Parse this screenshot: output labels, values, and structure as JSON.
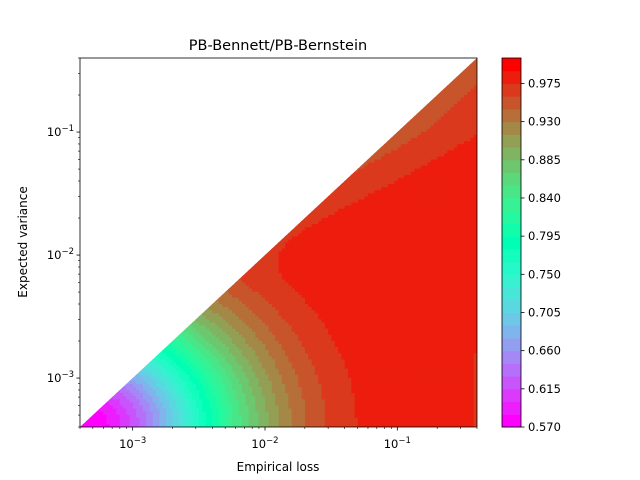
{
  "chart_data": {
    "type": "heatmap",
    "subtype": "filled-contour",
    "title": "PB-Bennett/PB-Bernstein",
    "xlabel": "Empirical loss",
    "ylabel": "Expected variance",
    "xscale": "log",
    "yscale": "log",
    "xlim": [
      0.0004,
      0.4
    ],
    "ylim": [
      0.0004,
      0.4
    ],
    "x_ticks": [
      {
        "value": 0.001,
        "base": "10",
        "exp": "−3"
      },
      {
        "value": 0.01,
        "base": "10",
        "exp": "−2"
      },
      {
        "value": 0.1,
        "base": "10",
        "exp": "−1"
      }
    ],
    "y_ticks": [
      {
        "value": 0.001,
        "base": "10",
        "exp": "−3"
      },
      {
        "value": 0.01,
        "base": "10",
        "exp": "−2"
      },
      {
        "value": 0.1,
        "base": "10",
        "exp": "−1"
      }
    ],
    "domain": "region where expected variance <= empirical loss (lower-right triangle); upper-left triangle blank",
    "colormap": "rainbow",
    "levels": [
      0.57,
      0.585,
      0.6,
      0.615,
      0.63,
      0.645,
      0.66,
      0.675,
      0.69,
      0.705,
      0.72,
      0.735,
      0.75,
      0.765,
      0.78,
      0.795,
      0.81,
      0.825,
      0.84,
      0.855,
      0.87,
      0.885,
      0.9,
      0.915,
      0.93,
      0.945,
      0.96,
      0.975,
      0.99,
      1.005
    ],
    "colorbar": {
      "ticks": [
        "0.570",
        "0.615",
        "0.660",
        "0.705",
        "0.750",
        "0.795",
        "0.840",
        "0.885",
        "0.930",
        "0.975"
      ],
      "min": 0.57,
      "max": 1.005
    },
    "value_samples": [
      {
        "x": 0.0005,
        "y": 0.0004,
        "value": 0.57
      },
      {
        "x": 0.001,
        "y": 0.0005,
        "value": 0.63
      },
      {
        "x": 0.002,
        "y": 0.0006,
        "value": 0.73
      },
      {
        "x": 0.004,
        "y": 0.0006,
        "value": 0.84
      },
      {
        "x": 0.01,
        "y": 0.0005,
        "value": 0.93
      },
      {
        "x": 0.02,
        "y": 0.0006,
        "value": 0.96
      },
      {
        "x": 0.1,
        "y": 0.0005,
        "value": 0.99
      },
      {
        "x": 0.35,
        "y": 0.0005,
        "value": 0.98
      },
      {
        "x": 0.35,
        "y": 0.35,
        "value": 0.96
      },
      {
        "x": 0.1,
        "y": 0.05,
        "value": 0.98
      },
      {
        "x": 0.03,
        "y": 0.003,
        "value": 0.99
      }
    ],
    "grid": false,
    "legend": "colorbar-right"
  }
}
